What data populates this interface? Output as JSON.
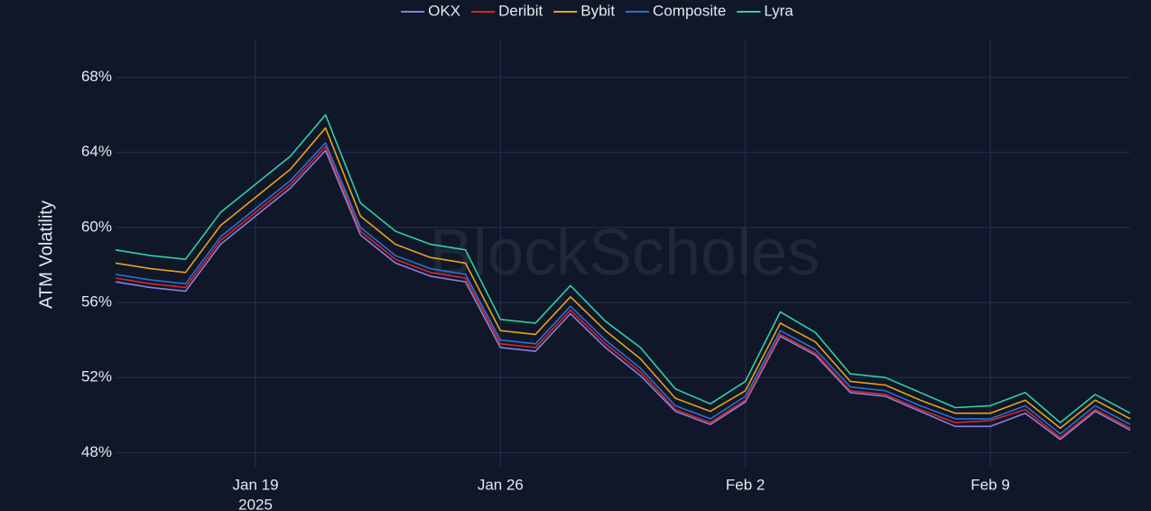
{
  "chart_data": {
    "type": "line",
    "y_label": "ATM Volatility",
    "watermark": "BlockScholes",
    "x": [
      "2025-01-15",
      "2025-01-16",
      "2025-01-17",
      "2025-01-18",
      "2025-01-19",
      "2025-01-20",
      "2025-01-21",
      "2025-01-22",
      "2025-01-23",
      "2025-01-24",
      "2025-01-25",
      "2025-01-26",
      "2025-01-27",
      "2025-01-28",
      "2025-01-29",
      "2025-01-30",
      "2025-01-31",
      "2025-02-01",
      "2025-02-02",
      "2025-02-03",
      "2025-02-04",
      "2025-02-05",
      "2025-02-06",
      "2025-02-07",
      "2025-02-08",
      "2025-02-09",
      "2025-02-10",
      "2025-02-11",
      "2025-02-12",
      "2025-02-13"
    ],
    "xlim": [
      "2025-01-15",
      "2025-02-13"
    ],
    "xticks": [
      {
        "value": "2025-01-19",
        "label": "Jan 19"
      },
      {
        "value": "2025-01-26",
        "label": "Jan 26"
      },
      {
        "value": "2025-02-02",
        "label": "Feb 2"
      },
      {
        "value": "2025-02-09",
        "label": "Feb 9"
      }
    ],
    "x_year": "2025",
    "ylim": [
      47.2,
      70
    ],
    "yticks": [
      {
        "value": 48,
        "label": "48%"
      },
      {
        "value": 52,
        "label": "52%"
      },
      {
        "value": 56,
        "label": "56%"
      },
      {
        "value": 60,
        "label": "60%"
      },
      {
        "value": 64,
        "label": "64%"
      },
      {
        "value": 68,
        "label": "68%"
      }
    ],
    "grid": true,
    "legend": "top",
    "series": [
      {
        "name": "OKX",
        "color": "#8a7fe0",
        "values": [
          57.1,
          56.8,
          56.6,
          59.1,
          60.6,
          62.1,
          64.1,
          59.6,
          58.1,
          57.4,
          57.1,
          53.6,
          53.4,
          55.4,
          53.6,
          52.1,
          50.2,
          49.5,
          50.7,
          54.2,
          53.2,
          51.2,
          51.0,
          50.2,
          49.4,
          49.4,
          50.1,
          48.7,
          50.2,
          49.2
        ]
      },
      {
        "name": "Deribit",
        "color": "#d62728",
        "values": [
          57.3,
          57.0,
          56.8,
          59.3,
          60.8,
          62.3,
          64.3,
          59.8,
          58.3,
          57.6,
          57.3,
          53.8,
          53.6,
          55.6,
          53.8,
          52.3,
          50.3,
          49.6,
          50.8,
          54.3,
          53.3,
          51.3,
          51.1,
          50.3,
          49.6,
          49.7,
          50.3,
          48.8,
          50.3,
          49.3
        ]
      },
      {
        "name": "Bybit",
        "color": "#e8a317",
        "values": [
          58.1,
          57.8,
          57.6,
          60.1,
          61.6,
          63.1,
          65.3,
          60.6,
          59.1,
          58.4,
          58.1,
          54.5,
          54.3,
          56.3,
          54.5,
          53.0,
          50.9,
          50.2,
          51.3,
          54.9,
          53.9,
          51.8,
          51.6,
          50.8,
          50.1,
          50.1,
          50.8,
          49.3,
          50.8,
          49.8
        ]
      },
      {
        "name": "Composite",
        "color": "#2c6fd6",
        "values": [
          57.5,
          57.2,
          57.0,
          59.5,
          61.0,
          62.5,
          64.5,
          60.0,
          58.5,
          57.8,
          57.5,
          54.0,
          53.8,
          55.8,
          54.0,
          52.5,
          50.5,
          49.8,
          51.0,
          54.5,
          53.5,
          51.5,
          51.3,
          50.5,
          49.8,
          49.8,
          50.5,
          49.0,
          50.5,
          49.5
        ]
      },
      {
        "name": "Lyra",
        "color": "#2fd1a3",
        "values": [
          58.8,
          58.5,
          58.3,
          60.8,
          62.3,
          63.8,
          66.0,
          61.3,
          59.8,
          59.1,
          58.8,
          55.1,
          54.9,
          56.9,
          55.0,
          53.6,
          51.4,
          50.6,
          51.8,
          55.5,
          54.4,
          52.2,
          52.0,
          51.2,
          50.4,
          50.5,
          51.2,
          49.6,
          51.1,
          50.1
        ]
      }
    ]
  }
}
